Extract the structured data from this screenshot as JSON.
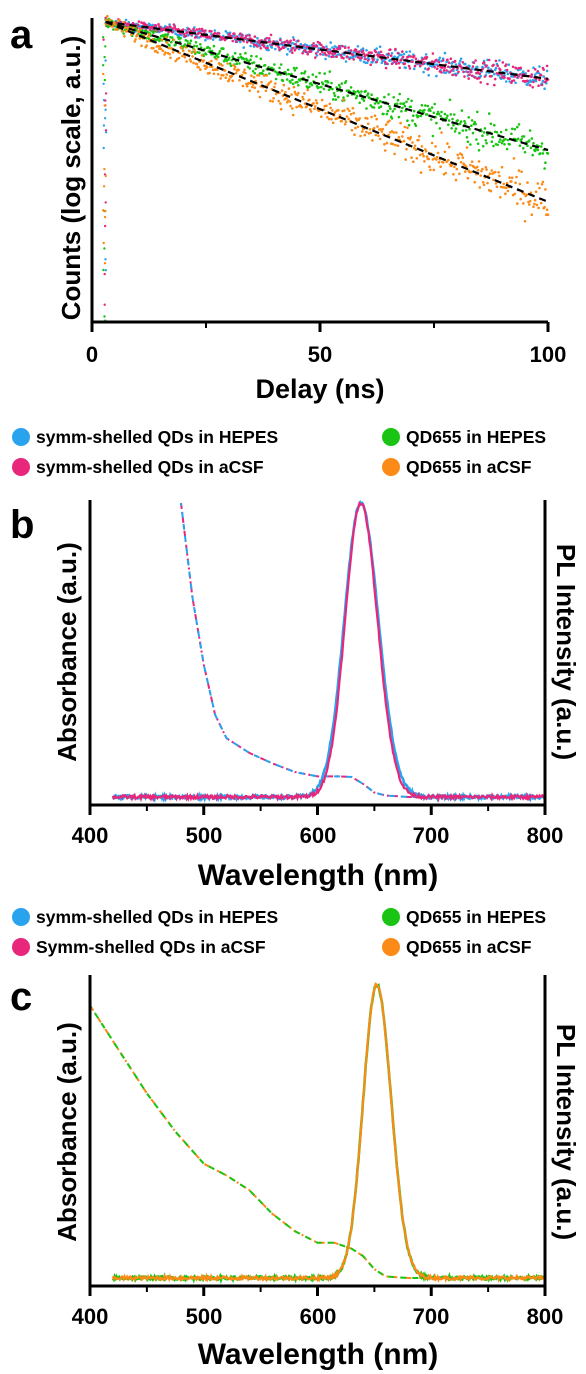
{
  "colors": {
    "blue": "#2aa3ee",
    "pink": "#e8277a",
    "green": "#19c413",
    "orange": "#fb8a17",
    "fit": "#000000"
  },
  "legend_ab": [
    {
      "label": "symm-shelled QDs in HEPES",
      "color": "#2aa3ee"
    },
    {
      "label": "QD655 in HEPES",
      "color": "#19c413"
    },
    {
      "label": "symm-shelled QDs in aCSF",
      "color": "#e8277a"
    },
    {
      "label": "QD655 in aCSF",
      "color": "#fb8a17"
    }
  ],
  "legend_bc": [
    {
      "label": "symm-shelled QDs in HEPES",
      "color": "#2aa3ee"
    },
    {
      "label": "QD655 in HEPES",
      "color": "#19c413"
    },
    {
      "label": "Symm-shelled QDs in aCSF",
      "color": "#e8277a"
    },
    {
      "label": "QD655 in aCSF",
      "color": "#fb8a17"
    }
  ],
  "chart_data": [
    {
      "panel": "a",
      "type": "scatter",
      "xlabel": "Delay (ns)",
      "ylabel": "Counts (log scale, a.u.)",
      "xlim": [
        0,
        100
      ],
      "xticks": [
        "0",
        "50",
        "100"
      ],
      "y_scale": "log",
      "fits": "dashed black single-exponential fits",
      "series": [
        {
          "name": "symm-shelled QDs in HEPES",
          "color": "#2aa3ee",
          "x_start": 3,
          "x_end": 100,
          "y_start": 1.0,
          "y_end": 0.62
        },
        {
          "name": "symm-shelled QDs in aCSF",
          "color": "#e8277a",
          "x_start": 3,
          "x_end": 100,
          "y_start": 1.0,
          "y_end": 0.62
        },
        {
          "name": "QD655 in HEPES",
          "color": "#19c413",
          "x_start": 3,
          "x_end": 100,
          "y_start": 1.0,
          "y_end": 0.34
        },
        {
          "name": "QD655 in aCSF",
          "color": "#fb8a17",
          "x_start": 3,
          "x_end": 100,
          "y_start": 1.0,
          "y_end": 0.22
        }
      ]
    },
    {
      "panel": "b",
      "type": "line",
      "xlabel": "Wavelength (nm)",
      "ylabel": "Absorbance (a.u.)",
      "ylabel_right": "PL Intensity (a.u.)",
      "xlim": [
        400,
        800
      ],
      "xticks": [
        "400",
        "500",
        "600",
        "700",
        "800"
      ],
      "series": [
        {
          "name": "symm-shelled QDs in HEPES (PL)",
          "color": "#2aa3ee",
          "style": "solid",
          "peak_nm": 638,
          "fwhm_nm": 34,
          "x_start": 420,
          "x_end": 800
        },
        {
          "name": "symm-shelled QDs in aCSF (PL)",
          "color": "#e8277a",
          "style": "solid",
          "peak_nm": 638,
          "fwhm_nm": 32,
          "x_start": 420,
          "x_end": 800
        },
        {
          "name": "symm-shelled QDs (absorbance)",
          "color": "#2aa3ee/#e8277a",
          "style": "dash-dot",
          "x": [
            480,
            490,
            500,
            510,
            520,
            540,
            560,
            580,
            600,
            620,
            630,
            640,
            650,
            660,
            680,
            700
          ],
          "y": [
            1.0,
            0.68,
            0.45,
            0.28,
            0.2,
            0.15,
            0.115,
            0.085,
            0.07,
            0.07,
            0.068,
            0.045,
            0.015,
            0.005,
            0.0,
            0.0
          ]
        }
      ]
    },
    {
      "panel": "c",
      "type": "line",
      "xlabel": "Wavelength (nm)",
      "ylabel": "Absorbance (a.u.)",
      "ylabel_right": "PL Intensity (a.u.)",
      "xlim": [
        400,
        800
      ],
      "xticks": [
        "400",
        "500",
        "600",
        "700",
        "800"
      ],
      "series": [
        {
          "name": "QD655 in HEPES (PL)",
          "color": "#19c413",
          "style": "solid",
          "peak_nm": 652,
          "fwhm_nm": 28,
          "x_start": 420,
          "x_end": 800
        },
        {
          "name": "QD655 in aCSF (PL)",
          "color": "#fb8a17",
          "style": "solid",
          "peak_nm": 652,
          "fwhm_nm": 28,
          "x_start": 420,
          "x_end": 800
        },
        {
          "name": "QD655 (absorbance)",
          "color": "#19c413/#fb8a17",
          "style": "dash-dot",
          "x": [
            400,
            425,
            450,
            475,
            500,
            520,
            540,
            560,
            580,
            600,
            615,
            630,
            640,
            650,
            660,
            680
          ],
          "y": [
            0.93,
            0.78,
            0.63,
            0.5,
            0.39,
            0.35,
            0.3,
            0.22,
            0.16,
            0.12,
            0.12,
            0.1,
            0.075,
            0.03,
            0.005,
            0.0
          ]
        }
      ]
    }
  ],
  "panel_labels": {
    "a": "a",
    "b": "b",
    "c": "c"
  },
  "axes_text": {
    "a_xlabel": "Delay (ns)",
    "a_ylabel": "Counts (log scale, a.u.)",
    "b_xlabel": "Wavelength (nm)",
    "b_ylabel": "Absorbance (a.u.)",
    "b_ylabel_right": "PL Intensity (a.u.)",
    "c_xlabel": "Wavelength (nm)",
    "c_ylabel": "Absorbance (a.u.)",
    "c_ylabel_right": "PL Intensity (a.u.)"
  },
  "ticks": {
    "a": [
      "0",
      "50",
      "100"
    ],
    "b": [
      "400",
      "500",
      "600",
      "700",
      "800"
    ],
    "c": [
      "400",
      "500",
      "600",
      "700",
      "800"
    ]
  }
}
